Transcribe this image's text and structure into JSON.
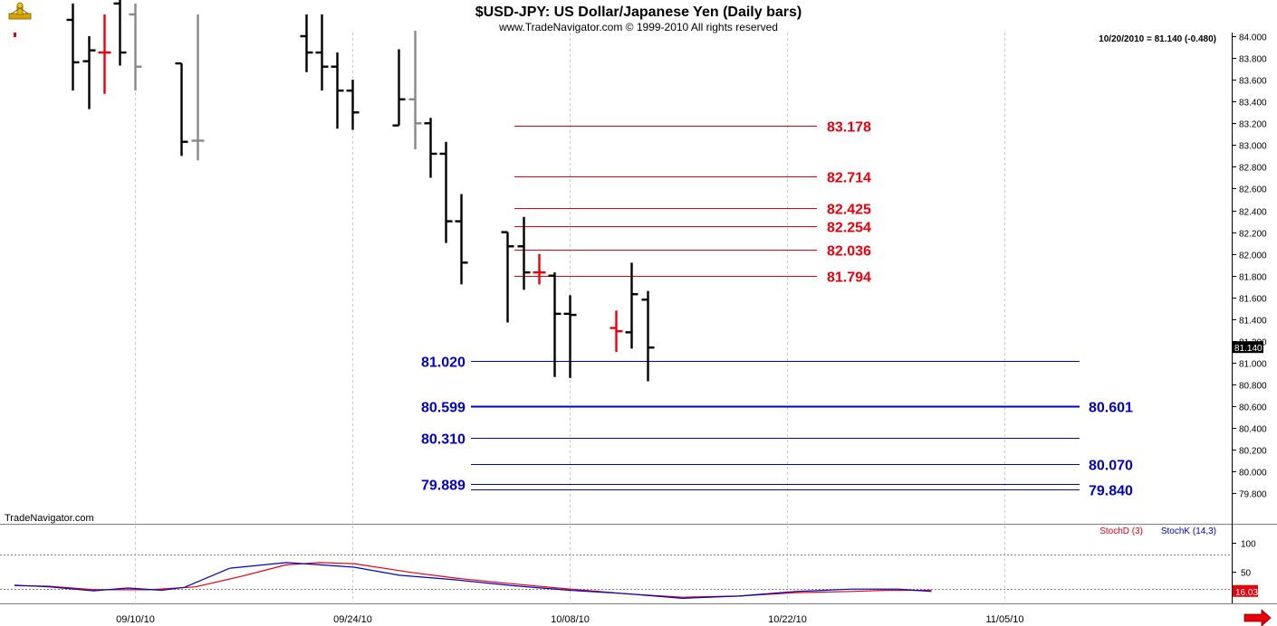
{
  "header": {
    "title": "$USD-JPY:  US Dollar/Japanese Yen  (Daily bars)",
    "subtitle": "www.TradeNavigator.com © 1999-2010 All rights reserved",
    "last_readout": "10/20/2010 = 81.140 (-0.480)",
    "watermark": "TradeNavigator.com"
  },
  "chart_data": [
    {
      "type": "ohlc",
      "title": "$USD-JPY:  US Dollar/Japanese Yen  (Daily bars)",
      "y_range": [
        79.7,
        84.0
      ],
      "y_ticks": [
        "84.000",
        "83.800",
        "83.600",
        "83.400",
        "83.200",
        "83.000",
        "82.800",
        "82.600",
        "82.400",
        "82.200",
        "82.000",
        "81.800",
        "81.600",
        "81.400",
        "81.200",
        "81.000",
        "80.800",
        "80.600",
        "80.400",
        "80.200",
        "80.000",
        "79.800"
      ],
      "x_ticks": [
        "09/10/10",
        "09/24/10",
        "10/08/10",
        "10/22/10",
        "11/05/10"
      ],
      "grid": true,
      "last_value": "81.140",
      "bar_colors": {
        "up_down": "#000000",
        "neutral": "#888888",
        "highlight": "#e8000b"
      },
      "bars": [
        {
          "x": "09/06/10",
          "open": 84.15,
          "high": 84.3,
          "low": 83.5,
          "close": 83.76,
          "color": "black"
        },
        {
          "x": "09/07/10",
          "open": 83.77,
          "high": 84.0,
          "low": 83.33,
          "close": 83.87,
          "color": "black"
        },
        {
          "x": "09/08/10",
          "open": 83.85,
          "high": 84.2,
          "low": 83.47,
          "close": 83.85,
          "color": "red"
        },
        {
          "x": "09/09/10",
          "open": 84.3,
          "high": 84.4,
          "low": 83.73,
          "close": 83.85,
          "color": "black"
        },
        {
          "x": "09/10/10",
          "open": 84.2,
          "high": 84.3,
          "low": 83.5,
          "close": 83.72,
          "color": "gray"
        },
        {
          "x": "09/13/10",
          "open": 83.75,
          "high": 83.75,
          "low": 82.9,
          "close": 83.03,
          "color": "black"
        },
        {
          "x": "09/14/10",
          "open": 83.04,
          "high": 84.2,
          "low": 82.86,
          "close": 83.04,
          "color": "gray"
        },
        {
          "x": "09/21/10",
          "open": 84.0,
          "high": 84.2,
          "low": 83.67,
          "close": 83.85,
          "color": "black"
        },
        {
          "x": "09/22/10",
          "open": 83.85,
          "high": 84.2,
          "low": 83.5,
          "close": 83.72,
          "color": "black"
        },
        {
          "x": "09/23/10",
          "open": 83.72,
          "high": 83.85,
          "low": 83.15,
          "close": 83.5,
          "color": "black"
        },
        {
          "x": "09/24/10",
          "open": 83.5,
          "high": 83.6,
          "low": 83.14,
          "close": 83.3,
          "color": "black"
        },
        {
          "x": "09/27/10",
          "open": 83.18,
          "high": 83.88,
          "low": 83.18,
          "close": 83.42,
          "color": "black"
        },
        {
          "x": "09/28/10",
          "open": 83.42,
          "high": 84.05,
          "low": 82.96,
          "close": 83.2,
          "color": "gray"
        },
        {
          "x": "09/29/10",
          "open": 83.2,
          "high": 83.25,
          "low": 82.7,
          "close": 82.92,
          "color": "black"
        },
        {
          "x": "09/30/10",
          "open": 82.92,
          "high": 83.03,
          "low": 82.1,
          "close": 82.3,
          "color": "black"
        },
        {
          "x": "10/01/10",
          "open": 82.3,
          "high": 82.55,
          "low": 81.72,
          "close": 81.92,
          "color": "black"
        },
        {
          "x": "10/04/10",
          "open": 82.2,
          "high": 82.2,
          "low": 81.37,
          "close": 82.07,
          "color": "black"
        },
        {
          "x": "10/05/10",
          "open": 82.07,
          "high": 82.34,
          "low": 81.67,
          "close": 81.83,
          "color": "black"
        },
        {
          "x": "10/06/10",
          "open": 81.83,
          "high": 82.0,
          "low": 81.72,
          "close": 81.83,
          "color": "red"
        },
        {
          "x": "10/07/10",
          "open": 81.8,
          "high": 81.83,
          "low": 80.87,
          "close": 81.45,
          "color": "black"
        },
        {
          "x": "10/08/10",
          "open": 81.45,
          "high": 81.62,
          "low": 80.86,
          "close": 81.44,
          "color": "black"
        },
        {
          "x": "10/11/10",
          "open": 81.32,
          "high": 81.48,
          "low": 81.1,
          "close": 81.29,
          "color": "red"
        },
        {
          "x": "10/12/10",
          "open": 81.28,
          "high": 81.92,
          "low": 81.13,
          "close": 81.63,
          "color": "black"
        },
        {
          "x": "10/13/10",
          "open": 81.58,
          "high": 81.66,
          "low": 80.83,
          "close": 81.14,
          "color": "black"
        }
      ],
      "levels_red": [
        {
          "value": 83.178,
          "label": "83.178"
        },
        {
          "value": 82.714,
          "label": "82.714"
        },
        {
          "value": 82.425,
          "label": "82.425"
        },
        {
          "value": 82.254,
          "label": "82.254"
        },
        {
          "value": 82.036,
          "label": "82.036"
        },
        {
          "value": 81.794,
          "label": "81.794"
        }
      ],
      "levels_blue": [
        {
          "value": 81.02,
          "label_left": "81.020",
          "label_right": "",
          "weight": "thin"
        },
        {
          "value": 80.6,
          "label_left": "80.599",
          "label_right": "80.601",
          "weight": "thick"
        },
        {
          "value": 80.31,
          "label_left": "80.310",
          "label_right": "",
          "weight": "thin"
        },
        {
          "value": 80.07,
          "label_left": "",
          "label_right": "80.070",
          "weight": "thin"
        },
        {
          "value": 79.889,
          "label_left": "79.889",
          "label_right": "",
          "weight": "thin"
        },
        {
          "value": 79.84,
          "label_left": "",
          "label_right": "79.840",
          "weight": "thin"
        }
      ],
      "level_colors": {
        "red": "#e8000b",
        "blue": "#0000c8"
      }
    },
    {
      "type": "line",
      "title": "",
      "y_range": [
        0,
        130
      ],
      "y_ticks": [
        "100",
        "50"
      ],
      "reference_lines": [
        80,
        20
      ],
      "last_value": "16.03",
      "series": [
        {
          "name": "StochD (3)",
          "color": "#e8000b",
          "points": [
            [
              1,
              26
            ],
            [
              4,
              25
            ],
            [
              8,
              19
            ],
            [
              13,
              19
            ],
            [
              17,
              24
            ],
            [
              21,
              42
            ],
            [
              25,
              62
            ],
            [
              28,
              66
            ],
            [
              31,
              64
            ],
            [
              36,
              49
            ],
            [
              40,
              39
            ],
            [
              44,
              31
            ],
            [
              49,
              22
            ],
            [
              55,
              12
            ],
            [
              60,
              6
            ],
            [
              65,
              8
            ],
            [
              70,
              14
            ],
            [
              75,
              16
            ],
            [
              78,
              18
            ],
            [
              82,
              18
            ]
          ]
        },
        {
          "name": "StochK (14,3)",
          "color": "#0000c8",
          "points": [
            [
              1,
              27
            ],
            [
              4,
              24
            ],
            [
              8,
              17
            ],
            [
              11,
              22
            ],
            [
              14,
              18
            ],
            [
              16,
              23
            ],
            [
              20,
              56
            ],
            [
              25,
              66
            ],
            [
              28,
              62
            ],
            [
              31,
              58
            ],
            [
              35,
              44
            ],
            [
              40,
              36
            ],
            [
              45,
              26
            ],
            [
              50,
              18
            ],
            [
              55,
              12
            ],
            [
              60,
              4
            ],
            [
              65,
              8
            ],
            [
              70,
              16
            ],
            [
              75,
              20
            ],
            [
              79,
              20
            ],
            [
              82,
              16
            ]
          ]
        }
      ]
    }
  ]
}
